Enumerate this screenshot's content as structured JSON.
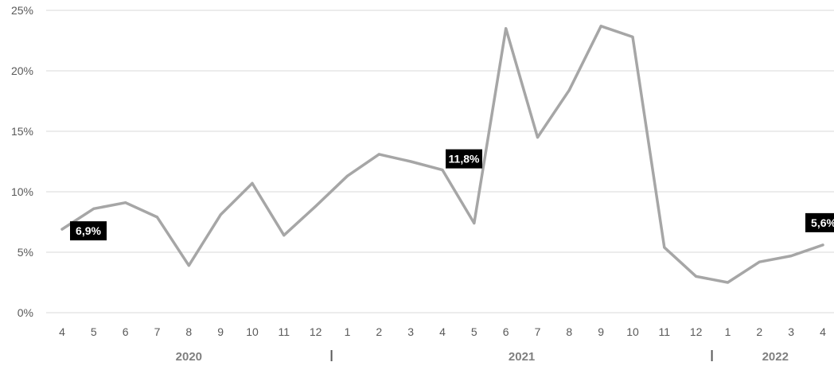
{
  "chart_data": {
    "type": "line",
    "title": "",
    "xlabel": "",
    "ylabel": "",
    "ylim": [
      0,
      25
    ],
    "yticks": [
      "0%",
      "5%",
      "10%",
      "15%",
      "20%",
      "25%"
    ],
    "grid": true,
    "categories": [
      "4",
      "5",
      "6",
      "7",
      "8",
      "9",
      "10",
      "11",
      "12",
      "1",
      "2",
      "3",
      "4",
      "5",
      "6",
      "7",
      "8",
      "9",
      "10",
      "11",
      "12",
      "1",
      "2",
      "3",
      "4"
    ],
    "years": [
      {
        "label": "2020",
        "first": 0,
        "last": 8
      },
      {
        "label": "2021",
        "first": 9,
        "last": 20
      },
      {
        "label": "2022",
        "first": 21,
        "last": 24
      }
    ],
    "series": [
      {
        "color": "#a6a6a6",
        "values": [
          6.9,
          8.6,
          9.1,
          7.9,
          3.9,
          8.1,
          10.7,
          6.4,
          8.8,
          11.3,
          13.1,
          12.5,
          11.8,
          7.4,
          23.5,
          14.5,
          18.4,
          23.7,
          22.8,
          5.4,
          3.0,
          2.5,
          4.2,
          4.7,
          5.6
        ]
      }
    ],
    "callouts": [
      {
        "index": 0,
        "label": "6,9%"
      },
      {
        "index": 12,
        "label": "11,8%"
      },
      {
        "index": 24,
        "label": "5,6%"
      }
    ]
  }
}
